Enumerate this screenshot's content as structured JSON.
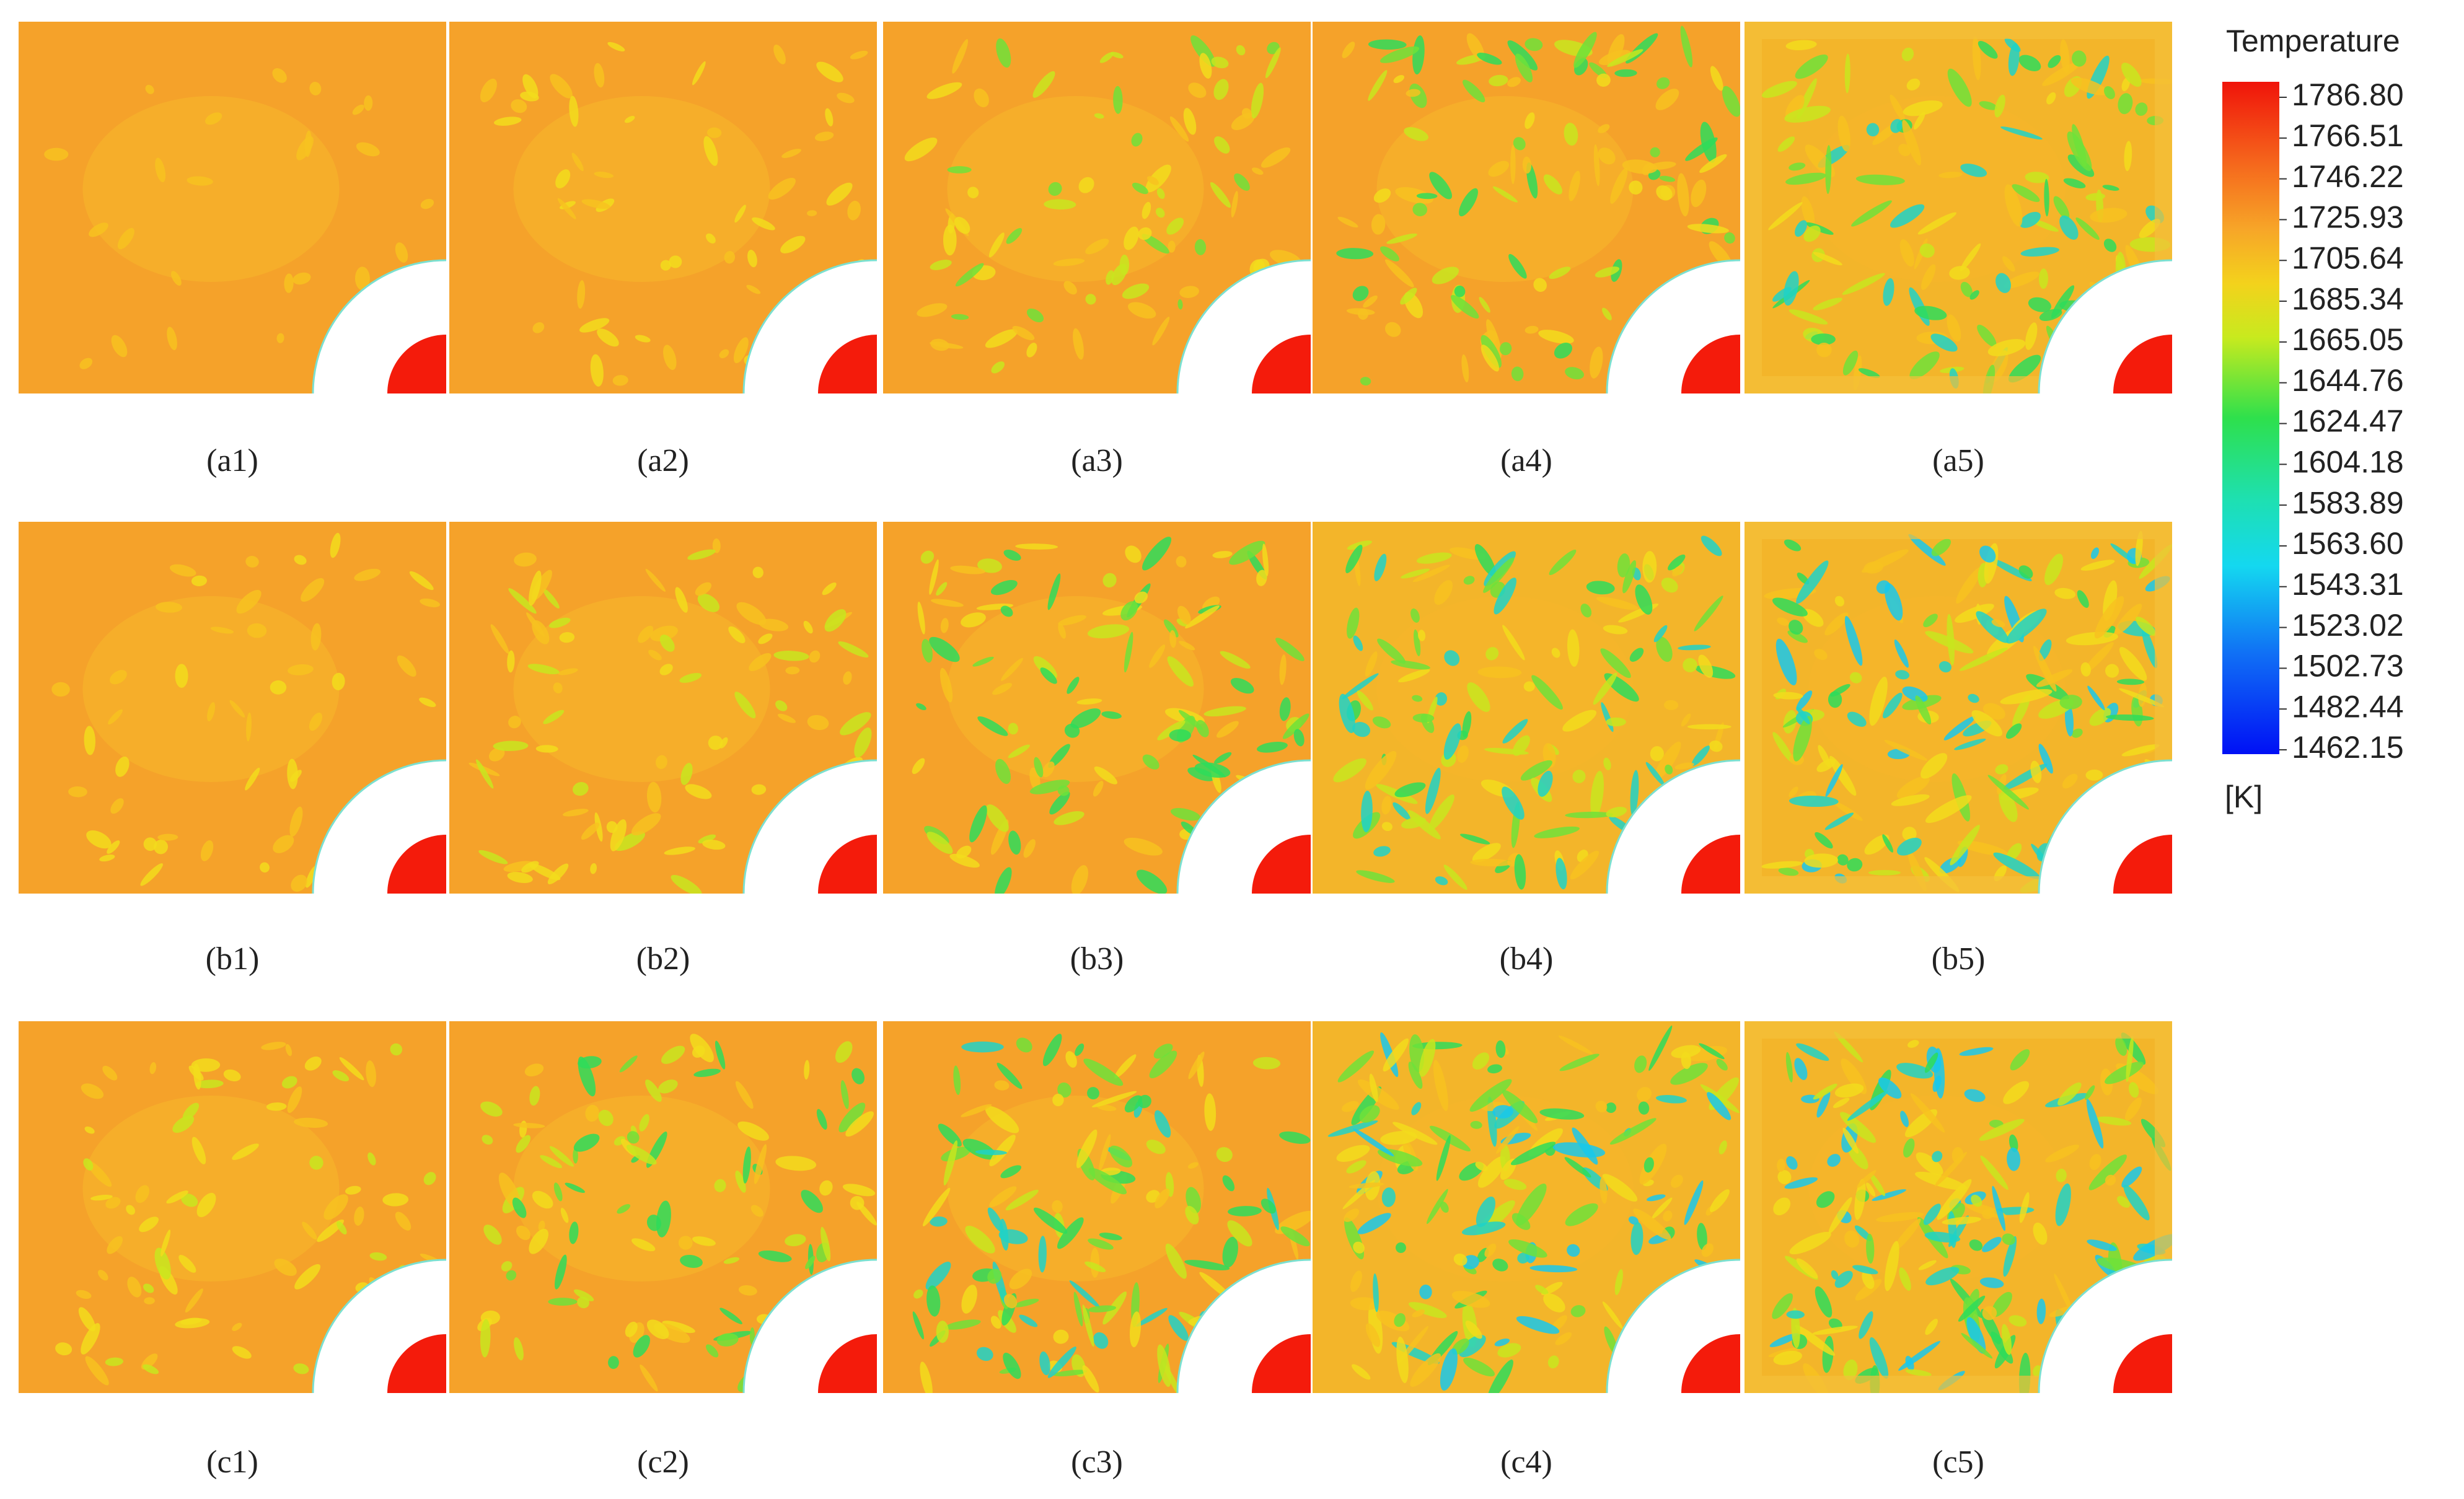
{
  "panels": [
    [
      "(a1)",
      "(a2)",
      "(a3)",
      "(a4)",
      "(a5)"
    ],
    [
      "(b1)",
      "(b2)",
      "(b3)",
      "(b4)",
      "(b5)"
    ],
    [
      "(c1)",
      "(c2)",
      "(c3)",
      "(c4)",
      "(c5)"
    ]
  ],
  "colorbar": {
    "title": "Temperature",
    "unit": "[K]",
    "ticks": [
      "1786.80",
      "1766.51",
      "1746.22",
      "1725.93",
      "1705.64",
      "1685.34",
      "1665.05",
      "1644.76",
      "1624.47",
      "1604.18",
      "1583.89",
      "1563.60",
      "1543.31",
      "1523.02",
      "1502.73",
      "1482.44",
      "1462.15"
    ]
  }
}
